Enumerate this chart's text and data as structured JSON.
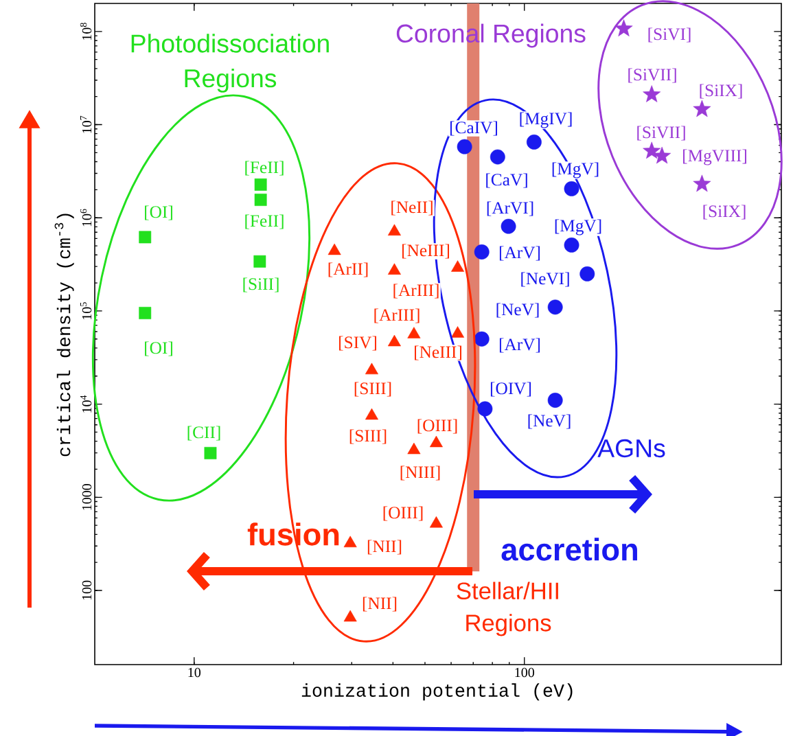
{
  "chart_data": {
    "type": "scatter",
    "xlabel": "ionization potential (eV)",
    "ylabel": "critical density (cm$^{-3}$)",
    "log": "xy",
    "xlim": [
      5,
      600
    ],
    "ylim": [
      16,
      200000000
    ],
    "xticks": [
      10,
      100
    ],
    "yticks": [
      100,
      1000,
      {
        "value": 10000,
        "label": "10$^{4}$"
      },
      {
        "value": 100000,
        "label": "10$^{5}$"
      },
      {
        "value": 1000000,
        "label": "10$^{6}$"
      },
      {
        "value": 10000000,
        "label": "10$^{7}$"
      },
      {
        "value": 100000000,
        "label": "10$^{8}$"
      }
    ],
    "series": [
      {
        "color": "#22e01e",
        "marker": "square",
        "x": [
          7.1,
          7.1,
          15.9,
          15.9,
          15.8,
          11.2
        ],
        "values": [
          620000,
          95000,
          2270000,
          1560000,
          340000,
          2980
        ]
      },
      {
        "color": "#ff2a00",
        "marker": "triangle",
        "x": [
          26.6,
          40.4,
          40.4,
          62.8,
          40.4,
          46.3,
          62.8,
          34.5,
          34.5,
          46.3,
          54.1,
          54.1,
          29.7,
          29.7
        ],
        "values": [
          440000,
          710000,
          270000,
          290000,
          46000,
          56000,
          57000,
          23000,
          7500,
          3200,
          3800,
          520,
          320,
          51
        ]
      },
      {
        "color": "#1a1aee",
        "marker": "circle",
        "x": [
          65.9,
          83,
          107,
          139,
          89.5,
          139,
          74.3,
          155,
          124,
          74.3,
          76,
          124
        ],
        "values": [
          5800000,
          4500000,
          6500000,
          2050000,
          810000,
          510000,
          430000,
          250000,
          110000,
          50000,
          8900,
          11000
        ]
      },
      {
        "color": "#9a3ad6",
        "marker": "star",
        "x": [
          200,
          243,
          345,
          243,
          261,
          345
        ],
        "values": [
          107000000,
          21000000,
          14600000,
          5200000,
          4600000,
          2300000
        ]
      }
    ],
    "ref_lines": [
      {
        "axis": "x",
        "value": 70,
        "color": "#e0806e"
      }
    ],
    "annotations": [
      "Photodissociation Regions",
      "Coronal Regions",
      "AGNs",
      "Stellar/HII Regions",
      "fusion",
      "accretion",
      "[FeII]",
      "[FeII]",
      "[OI]",
      "[OI]",
      "[SiII]",
      "[CII]",
      "[NeII]",
      "[NeIII]",
      "[ArII]",
      "[ArIII]",
      "[ArIII]",
      "[SIV]",
      "[NeIII]",
      "[SIII]",
      "[SIII]",
      "[OIII]",
      "[NIII]",
      "[OIII]",
      "[NII]",
      "[NII]",
      "[CaIV]",
      "[MgIV]",
      "[CaV]",
      "[MgV]",
      "[ArVI]",
      "[MgV]",
      "[ArV]",
      "[NeVI]",
      "[NeV]",
      "[ArV]",
      "[OIV]",
      "[NeV]",
      "[SiVI]",
      "[SiVII]",
      "[SiIX]",
      "[SiVII]",
      "[MgVIII]",
      "[SiIX]"
    ]
  }
}
